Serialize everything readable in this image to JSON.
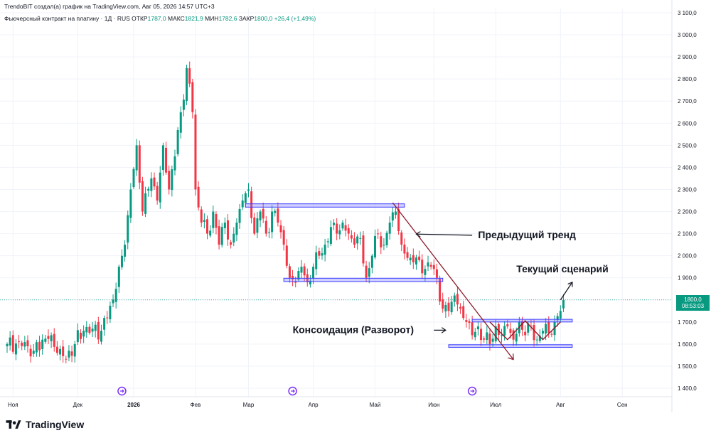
{
  "header": {
    "credit": "TrendoBIT создал(а) график на TradingView.com, Авг 05, 2026 14:57 UTC+3",
    "instrument_title": "Фьючерсный контракт на платину · 1Д · RUS",
    "open_label": "ОТКР",
    "open_value": "1787,0",
    "high_label": "МАКС",
    "high_value": "1821,9",
    "low_label": "МИН",
    "low_value": "1782,6",
    "close_label": "ЗАКР",
    "close_value": "1800,0",
    "change_value": "+26,4 (+1,49%)"
  },
  "price_tag": {
    "price": "1800,0",
    "countdown": "08:53:03"
  },
  "footer": {
    "brand": "TradingView"
  },
  "colors": {
    "up": "#089981",
    "down": "#f23645",
    "zone": "#3d3dff",
    "trendline": "#8b1a2b",
    "arrow": "#131722"
  },
  "icons": [
    "tradingview-logo-icon",
    "event-marker-icon"
  ],
  "chart_data": {
    "type": "candlestick",
    "y_axis_position": "right",
    "ylim": [
      1350,
      3120
    ],
    "y_ticks": [
      1400,
      1500,
      1600,
      1700,
      1800,
      1900,
      2000,
      2100,
      2200,
      2300,
      2400,
      2500,
      2600,
      2700,
      2800,
      2900,
      3000,
      3100
    ],
    "y_tick_labels": [
      "1 400,0",
      "1 500,0",
      "1 600,0",
      "1 700,0",
      "1 800,0",
      "1 900,0",
      "2 000,0",
      "2 100,0",
      "2 200,0",
      "2 300,0",
      "2 400,0",
      "2 500,0",
      "2 600,0",
      "2 700,0",
      "2 800,0",
      "2 900,0",
      "3 000,0",
      "3 100,0"
    ],
    "x_labels": [
      {
        "label": "Ноя",
        "bar": 2
      },
      {
        "label": "Дек",
        "bar": 24
      },
      {
        "label": "2026",
        "bar": 43
      },
      {
        "label": "Фев",
        "bar": 64
      },
      {
        "label": "Мар",
        "bar": 82
      },
      {
        "label": "Апр",
        "bar": 104
      },
      {
        "label": "Май",
        "bar": 125
      },
      {
        "label": "Июн",
        "bar": 145
      },
      {
        "label": "Июл",
        "bar": 166
      },
      {
        "label": "Авг",
        "bar": 188
      },
      {
        "label": "Сен",
        "bar": 209
      }
    ],
    "event_markers_bars": [
      39,
      97,
      158
    ],
    "last_price": 1800,
    "close_path": [
      [
        0,
        1600
      ],
      [
        4,
        1610
      ],
      [
        7,
        1590
      ],
      [
        9,
        1570
      ],
      [
        12,
        1620
      ],
      [
        15,
        1640
      ],
      [
        17,
        1560
      ],
      [
        20,
        1530
      ],
      [
        23,
        1600
      ],
      [
        26,
        1660
      ],
      [
        29,
        1670
      ],
      [
        32,
        1660
      ],
      [
        34,
        1720
      ],
      [
        37,
        1850
      ],
      [
        40,
        2050
      ],
      [
        42,
        2300
      ],
      [
        44,
        2500
      ],
      [
        46,
        2200
      ],
      [
        49,
        2350
      ],
      [
        51,
        2250
      ],
      [
        53,
        2500
      ],
      [
        55,
        2300
      ],
      [
        57,
        2450
      ],
      [
        59,
        2650
      ],
      [
        61,
        2850
      ],
      [
        63,
        2650
      ],
      [
        64,
        2300
      ],
      [
        66,
        2150
      ],
      [
        68,
        2100
      ],
      [
        70,
        2200
      ],
      [
        72,
        2050
      ],
      [
        74,
        2150
      ],
      [
        76,
        2050
      ],
      [
        78,
        2150
      ],
      [
        80,
        2250
      ],
      [
        82,
        2300
      ],
      [
        84,
        2100
      ],
      [
        86,
        2200
      ],
      [
        88,
        2100
      ],
      [
        90,
        2200
      ],
      [
        92,
        2150
      ],
      [
        94,
        2050
      ],
      [
        96,
        1900
      ],
      [
        98,
        1880
      ],
      [
        100,
        1950
      ],
      [
        102,
        1880
      ],
      [
        104,
        1950
      ],
      [
        106,
        2000
      ],
      [
        108,
        2050
      ],
      [
        110,
        2130
      ],
      [
        112,
        2100
      ],
      [
        114,
        2150
      ],
      [
        116,
        2100
      ],
      [
        118,
        2050
      ],
      [
        120,
        2080
      ],
      [
        122,
        1900
      ],
      [
        124,
        2000
      ],
      [
        126,
        2100
      ],
      [
        128,
        2050
      ],
      [
        130,
        2150
      ],
      [
        132,
        2200
      ],
      [
        134,
        2050
      ],
      [
        136,
        1990
      ],
      [
        138,
        1970
      ],
      [
        140,
        1980
      ],
      [
        142,
        1940
      ],
      [
        144,
        1950
      ],
      [
        146,
        1900
      ],
      [
        148,
        1760
      ],
      [
        150,
        1750
      ],
      [
        152,
        1820
      ],
      [
        154,
        1760
      ],
      [
        156,
        1700
      ],
      [
        158,
        1640
      ],
      [
        160,
        1680
      ],
      [
        162,
        1620
      ],
      [
        164,
        1600
      ],
      [
        166,
        1680
      ],
      [
        168,
        1640
      ],
      [
        170,
        1680
      ],
      [
        172,
        1620
      ],
      [
        174,
        1700
      ],
      [
        176,
        1640
      ],
      [
        178,
        1680
      ],
      [
        180,
        1620
      ],
      [
        182,
        1660
      ],
      [
        184,
        1650
      ],
      [
        186,
        1700
      ],
      [
        188,
        1750
      ],
      [
        189,
        1800
      ]
    ],
    "zones": [
      {
        "bar_start": 81,
        "bar_end": 135,
        "low": 2220,
        "high": 2235
      },
      {
        "bar_start": 94,
        "bar_end": 148,
        "low": 1883,
        "high": 1898
      },
      {
        "bar_start": 158,
        "bar_end": 192,
        "low": 1700,
        "high": 1712
      },
      {
        "bar_start": 150,
        "bar_end": 192,
        "low": 1585,
        "high": 1597
      }
    ],
    "trendline": {
      "from": [
        131,
        2240
      ],
      "to": [
        172,
        1530
      ]
    },
    "zigzag": [
      [
        164,
        1700
      ],
      [
        170,
        1620
      ],
      [
        176,
        1705
      ],
      [
        182,
        1620
      ],
      [
        188,
        1700
      ]
    ],
    "annotations": [
      {
        "text": "Предыдущий тренд",
        "bar": 160,
        "price": 2080,
        "arrow_to": [
          139,
          2085
        ]
      },
      {
        "text": "Текущий сценарий",
        "bar": 173,
        "price": 1925,
        "arrow_from": [
          188,
          1800
        ],
        "arrow_to": [
          192,
          1880
        ]
      },
      {
        "text": "Консоидация (Разворот)",
        "bar": 97,
        "price": 1650,
        "arrow_to": [
          149,
          1650
        ]
      }
    ]
  }
}
